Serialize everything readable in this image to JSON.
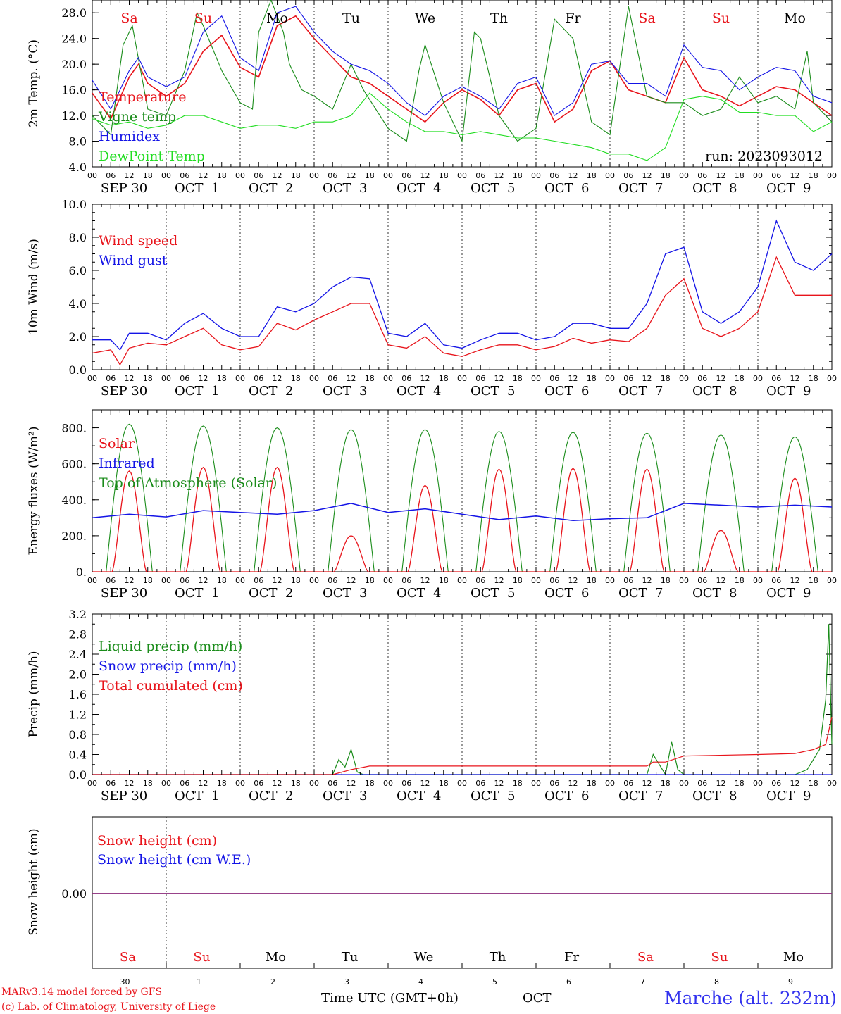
{
  "colors": {
    "red": "#e8141b",
    "green": "#1a8c1a",
    "blue": "#1414e6",
    "lightgreen": "#22dd22",
    "purple": "#7a2a8a",
    "credit": "#e8141b",
    "location": "#3333ee"
  },
  "date_labels": [
    "SEP 30",
    "OCT  1",
    "OCT  2",
    "OCT  3",
    "OCT  4",
    "OCT  5",
    "OCT  6",
    "OCT  7",
    "OCT  8",
    "OCT  9"
  ],
  "hour_labels": [
    "00",
    "06",
    "12",
    "18"
  ],
  "hour_end_label": "00",
  "weekdays": [
    {
      "label": "Sa",
      "color": "#e8141b"
    },
    {
      "label": "Su",
      "color": "#e8141b"
    },
    {
      "label": "Mo",
      "color": "#000000"
    },
    {
      "label": "Tu",
      "color": "#000000"
    },
    {
      "label": "We",
      "color": "#000000"
    },
    {
      "label": "Th",
      "color": "#000000"
    },
    {
      "label": "Fr",
      "color": "#000000"
    },
    {
      "label": "Sa",
      "color": "#e8141b"
    },
    {
      "label": "Su",
      "color": "#e8141b"
    },
    {
      "label": "Mo",
      "color": "#000000"
    }
  ],
  "day_numbers": [
    "30",
    "1",
    "2",
    "3",
    "4",
    "5",
    "6",
    "7",
    "8",
    "9"
  ],
  "footer": {
    "credit1": "MARv3.14 model forced by GFS",
    "credit2": "(c) Lab. of Climatology, University of Liege",
    "time_label": "Time UTC (GMT+0h)",
    "month_label": "OCT",
    "location": "Marche (alt. 232m)"
  },
  "chart_data": [
    {
      "type": "line",
      "ylabel": "2m Temp. (°C)",
      "ylim": [
        4,
        30
      ],
      "yticks": [
        "4.0",
        "8.0",
        "12.0",
        "16.0",
        "20.0",
        "24.0",
        "28.0"
      ],
      "annotation": "run: 2023093012",
      "legend_placement": "left",
      "series": [
        {
          "name": "Temperature",
          "color": "#e8141b",
          "x": [
            0,
            6,
            12,
            15,
            18,
            24,
            30,
            36,
            42,
            48,
            54,
            60,
            66,
            72,
            78,
            84,
            90,
            96,
            102,
            108,
            114,
            120,
            126,
            132,
            138,
            144,
            150,
            156,
            162,
            168,
            174,
            180,
            186,
            192,
            198,
            204,
            210,
            216,
            222,
            228,
            234,
            240
          ],
          "values": [
            15.5,
            11.5,
            18,
            20,
            17,
            15,
            17,
            22,
            24.5,
            19.5,
            18,
            26,
            27.5,
            24,
            21,
            18,
            17,
            15,
            13,
            11,
            14,
            16,
            14.5,
            12,
            16,
            17,
            11,
            13,
            19,
            20.5,
            16,
            15,
            14,
            21,
            16,
            15,
            13.5,
            15,
            16.5,
            16,
            14,
            12
          ]
        },
        {
          "name": "Vigne temp",
          "color": "#1a8c1a",
          "x": [
            0,
            6,
            10,
            13,
            18,
            24,
            30,
            34,
            36,
            42,
            48,
            52,
            54,
            58,
            62,
            64,
            68,
            72,
            78,
            84,
            88,
            96,
            102,
            106,
            108,
            114,
            120,
            124,
            126,
            132,
            138,
            144,
            150,
            156,
            162,
            168,
            174,
            180,
            186,
            190,
            192,
            198,
            204,
            210,
            216,
            222,
            228,
            232,
            234,
            240
          ],
          "values": [
            12,
            9,
            23,
            26,
            13,
            12,
            19,
            28,
            26,
            19,
            14,
            13,
            25,
            30,
            25,
            20,
            16,
            15,
            13,
            20,
            16,
            10,
            8,
            19,
            23,
            14,
            8,
            25,
            24,
            12,
            8,
            10,
            27,
            24,
            11,
            9,
            29,
            15,
            14,
            14,
            14,
            12,
            13,
            18,
            14,
            15,
            13,
            22,
            14,
            11
          ]
        },
        {
          "name": "Humidex",
          "color": "#1414e6",
          "x": [
            0,
            6,
            12,
            15,
            18,
            24,
            30,
            36,
            42,
            48,
            54,
            60,
            66,
            72,
            78,
            84,
            90,
            96,
            102,
            108,
            114,
            120,
            126,
            132,
            138,
            144,
            150,
            156,
            162,
            168,
            174,
            180,
            186,
            192,
            198,
            204,
            210,
            216,
            222,
            228,
            234,
            240
          ],
          "values": [
            17.5,
            13,
            19,
            21,
            18,
            16.5,
            18,
            25,
            27.5,
            21,
            19,
            28,
            29,
            25,
            22,
            20,
            19,
            17,
            14,
            12,
            15,
            16.5,
            15,
            13,
            17,
            18,
            12,
            14,
            20,
            20.5,
            17,
            17,
            15,
            23,
            19.5,
            19,
            16,
            18,
            19.5,
            19,
            15,
            14
          ]
        },
        {
          "name": "DewPoint Temp",
          "color": "#22dd22",
          "x": [
            0,
            6,
            12,
            18,
            24,
            30,
            36,
            42,
            48,
            54,
            60,
            66,
            72,
            78,
            84,
            90,
            96,
            102,
            108,
            114,
            120,
            126,
            132,
            138,
            144,
            150,
            156,
            162,
            168,
            174,
            180,
            186,
            192,
            198,
            204,
            210,
            216,
            222,
            228,
            234,
            240
          ],
          "values": [
            11.5,
            10.5,
            11,
            10,
            10.5,
            12,
            12,
            11,
            10,
            10.5,
            10.5,
            10,
            11,
            11,
            12,
            15.5,
            13,
            11,
            9.5,
            9.5,
            9,
            9.5,
            9,
            8.5,
            8.5,
            8,
            7.5,
            7,
            6,
            6,
            5,
            7,
            14.5,
            15,
            14.5,
            12.5,
            12.5,
            12,
            12,
            9.5,
            11
          ]
        }
      ]
    },
    {
      "type": "line",
      "ylabel": "10m Wind (m/s)",
      "ylim": [
        0,
        10
      ],
      "yticks": [
        "0.0",
        "2.0",
        "4.0",
        "6.0",
        "8.0",
        "10.0"
      ],
      "reference_line": 5,
      "legend_placement": "left",
      "series": [
        {
          "name": "Wind speed",
          "color": "#e8141b",
          "x": [
            0,
            6,
            9,
            12,
            18,
            24,
            30,
            36,
            42,
            48,
            54,
            60,
            66,
            72,
            78,
            84,
            90,
            96,
            102,
            108,
            114,
            120,
            126,
            132,
            138,
            144,
            150,
            156,
            162,
            168,
            174,
            180,
            186,
            192,
            198,
            204,
            210,
            216,
            222,
            228,
            234,
            240
          ],
          "values": [
            1.0,
            1.2,
            0.3,
            1.3,
            1.6,
            1.5,
            2.0,
            2.5,
            1.5,
            1.2,
            1.4,
            2.8,
            2.4,
            3.0,
            3.5,
            4.0,
            4.0,
            1.5,
            1.3,
            2.0,
            1.0,
            0.8,
            1.2,
            1.5,
            1.5,
            1.2,
            1.4,
            1.9,
            1.6,
            1.8,
            1.7,
            2.5,
            4.5,
            5.5,
            2.5,
            2.0,
            2.5,
            3.5,
            6.8,
            4.5,
            4.5,
            4.5
          ]
        },
        {
          "name": "Wind gust",
          "color": "#1414e6",
          "x": [
            0,
            6,
            9,
            12,
            18,
            24,
            30,
            36,
            42,
            48,
            54,
            60,
            66,
            72,
            78,
            84,
            90,
            96,
            102,
            108,
            114,
            120,
            126,
            132,
            138,
            144,
            150,
            156,
            162,
            168,
            174,
            180,
            186,
            192,
            198,
            204,
            210,
            216,
            222,
            228,
            234,
            240
          ],
          "values": [
            1.8,
            1.8,
            1.2,
            2.2,
            2.2,
            1.8,
            2.8,
            3.4,
            2.5,
            2.0,
            2.0,
            3.8,
            3.5,
            4.0,
            5.0,
            5.6,
            5.5,
            2.2,
            2.0,
            2.8,
            1.5,
            1.3,
            1.8,
            2.2,
            2.2,
            1.8,
            2.0,
            2.8,
            2.8,
            2.5,
            2.5,
            4.0,
            7.0,
            7.4,
            3.5,
            2.8,
            3.5,
            5.0,
            9.0,
            6.5,
            6.0,
            7.0
          ]
        }
      ]
    },
    {
      "type": "line",
      "ylabel": "Energy fluxes (W/m²)",
      "ylim": [
        0,
        900
      ],
      "yticks": [
        "0.",
        "200.",
        "400.",
        "600.",
        "800."
      ],
      "legend_placement": "left",
      "series": [
        {
          "name": "Solar",
          "color": "#e8141b",
          "peaks": [
            560,
            580,
            580,
            200,
            480,
            570,
            575,
            570,
            230,
            520
          ]
        },
        {
          "name": "Infrared",
          "color": "#1414e6",
          "x": [
            0,
            12,
            24,
            36,
            48,
            60,
            72,
            84,
            96,
            108,
            120,
            132,
            144,
            156,
            168,
            180,
            192,
            204,
            216,
            228,
            240
          ],
          "values": [
            300,
            320,
            305,
            340,
            330,
            320,
            340,
            380,
            330,
            350,
            320,
            290,
            310,
            285,
            295,
            300,
            380,
            370,
            360,
            370,
            360
          ]
        },
        {
          "name": "Top of Atmosphere (Solar)",
          "color": "#1a8c1a",
          "peaks": [
            820,
            810,
            800,
            790,
            790,
            780,
            775,
            770,
            760,
            750
          ]
        }
      ]
    },
    {
      "type": "line",
      "ylabel": "Precip (mm/h)",
      "ylim": [
        0,
        3.2
      ],
      "yticks": [
        "0.0",
        "0.4",
        "0.8",
        "1.2",
        "1.6",
        "2.0",
        "2.4",
        "2.8",
        "3.2"
      ],
      "legend_placement": "left",
      "series": [
        {
          "name": "Liquid precip (mm/h)",
          "color": "#1a8c1a",
          "x": [
            0,
            78,
            80,
            82,
            84,
            86,
            88,
            90,
            150,
            180,
            182,
            186,
            188,
            190,
            192,
            194,
            216,
            228,
            232,
            234,
            236,
            238,
            239,
            240
          ],
          "values": [
            0,
            0,
            0.3,
            0.15,
            0.5,
            0.05,
            0,
            0,
            0,
            0,
            0.4,
            0,
            0.65,
            0.1,
            0,
            0,
            0,
            0,
            0.1,
            0.3,
            0.5,
            1.5,
            3.0,
            0.6
          ]
        },
        {
          "name": "Snow precip (mm/h)",
          "color": "#1414e6",
          "x": [
            0,
            240
          ],
          "values": [
            0,
            0
          ]
        },
        {
          "name": "Total cumulated (cm)",
          "color": "#e8141b",
          "x": [
            0,
            78,
            84,
            90,
            120,
            180,
            182,
            186,
            192,
            216,
            228,
            234,
            238,
            240
          ],
          "values": [
            0,
            0,
            0.1,
            0.17,
            0.17,
            0.17,
            0.25,
            0.25,
            0.37,
            0.4,
            0.42,
            0.5,
            0.6,
            1.15
          ]
        }
      ]
    },
    {
      "type": "line",
      "ylabel": "Snow height (cm)",
      "yticks": [
        "0.00"
      ],
      "legend_placement": "left",
      "series": [
        {
          "name": "Snow height (cm)",
          "color": "#e8141b",
          "x": [
            0,
            240
          ],
          "values": [
            0,
            0
          ]
        },
        {
          "name": "Snow height (cm W.E.)",
          "color": "#1414e6",
          "x": [
            0,
            240
          ],
          "values": [
            0,
            0
          ]
        }
      ]
    }
  ]
}
